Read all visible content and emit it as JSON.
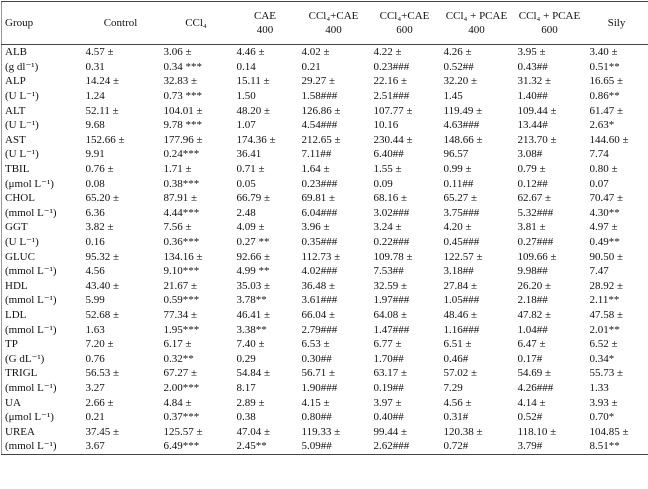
{
  "table": {
    "header": [
      [
        "Group"
      ],
      [
        "Control"
      ],
      [
        "CCl₄"
      ],
      [
        "CAE",
        "400"
      ],
      [
        "CCl₄+CAE",
        "400"
      ],
      [
        "CCl₄+CAE",
        "600"
      ],
      [
        "CCl₄ + PCAE",
        "400"
      ],
      [
        "CCl₄ + PCAE",
        "600"
      ],
      [
        "Sily"
      ]
    ],
    "rows": [
      [
        "ALB",
        "4.57 ±",
        "3.06 ±",
        "4.46 ±",
        "4.02 ±",
        "4.22 ±",
        "4.26 ±",
        "3.95 ±",
        "3.40 ±"
      ],
      [
        "(g dl⁻¹)",
        "0.31",
        "0.34 ***",
        "0.14",
        "0.21",
        "0.23###",
        "0.52##",
        "0.43##",
        "0.51**"
      ],
      [
        "ALP",
        "14.24 ±",
        "32.83 ±",
        "15.11 ±",
        "29.27 ±",
        "22.16 ±",
        "32.20 ±",
        "31.32 ±",
        "16.65 ±"
      ],
      [
        "(U L⁻¹)",
        "1.24",
        "0.73 ***",
        "1.50",
        "1.58###",
        "2.51###",
        "1.45",
        "1.40##",
        "0.86**"
      ],
      [
        "ALT",
        "52.11 ±",
        "104.01 ±",
        "48.20 ±",
        "126.86 ±",
        "107.77 ±",
        "119.49 ±",
        "109.44 ±",
        "61.47 ±"
      ],
      [
        "(U L⁻¹)",
        "9.68",
        "9.78 ***",
        "1.07",
        "4.54###",
        "10.16",
        "4.63###",
        "13.44#",
        "2.63*"
      ],
      [
        "AST",
        "152.66 ±",
        "177.96 ±",
        "174.36 ±",
        "212.65 ±",
        "230.44 ±",
        "148.66 ±",
        "213.70 ±",
        "144.60 ±"
      ],
      [
        "(U L⁻¹)",
        "9.91",
        "0.24***",
        "36.41",
        "7.11##",
        "6.40##",
        "96.57",
        "3.08#",
        "7.74"
      ],
      [
        "TBIL",
        "0.76 ±",
        "1.71 ±",
        "0.71 ±",
        "1.64 ±",
        "1.55 ±",
        "0.99 ±",
        "0.79 ±",
        "0.80 ±"
      ],
      [
        "(μmol L⁻¹)",
        "0.08",
        "0.38***",
        "0.05",
        "0.23###",
        "0.09",
        "0.11##",
        "0.12##",
        "0.07"
      ],
      [
        "CHOL",
        "65.20 ±",
        "87.91 ±",
        "66.79 ±",
        "69.81 ±",
        "68.16 ±",
        "65.27 ±",
        "62.67 ±",
        "70.47 ±"
      ],
      [
        "(mmol L⁻¹)",
        "6.36",
        "4.44***",
        "2.48",
        "6.04###",
        "3.02###",
        "3.75###",
        "5.32###",
        "4.30**"
      ],
      [
        "GGT",
        "3.82 ±",
        "7.56 ±",
        "4.09 ±",
        "3.96 ±",
        "3.24 ±",
        "4.20 ±",
        "3.81 ±",
        "4.97 ±"
      ],
      [
        "(U L⁻¹)",
        "0.16",
        "0.36***",
        "0.27 **",
        "0.35###",
        "0.22###",
        "0.45###",
        "0.27###",
        "0.49**"
      ],
      [
        "GLUC",
        "95.32 ±",
        "134.16 ±",
        "92.66 ±",
        "112.73 ±",
        "109.78 ±",
        "122.57 ±",
        "109.66 ±",
        "90.50 ±"
      ],
      [
        "(mmol L⁻¹)",
        "4.56",
        "9.10***",
        "4.99 **",
        "4.02###",
        "7.53##",
        "3.18##",
        "9.98##",
        "7.47"
      ],
      [
        "HDL",
        "43.40 ±",
        "21.67 ±",
        "35.03 ±",
        "36.48 ±",
        "32.59 ±",
        "27.84 ±",
        "26.20 ±",
        "28.92 ±"
      ],
      [
        "(mmol L⁻¹)",
        "5.99",
        "0.59***",
        "3.78**",
        "3.61###",
        "1.97###",
        "1.05###",
        "2.18##",
        "2.11**"
      ],
      [
        "LDL",
        "52.68 ±",
        "77.34 ±",
        "46.41 ±",
        "66.04 ±",
        "64.08 ±",
        "48.46 ±",
        "47.82 ±",
        "47.58 ±"
      ],
      [
        "(mmol L⁻¹)",
        "1.63",
        "1.95***",
        "3.38**",
        "2.79###",
        "1.47###",
        "1.16###",
        "1.04##",
        "2.01**"
      ],
      [
        "TP",
        "7.20 ±",
        "6.17 ±",
        "7.40 ±",
        "6.53 ±",
        "6.77 ±",
        "6.51 ±",
        "6.47 ±",
        "6.52 ±"
      ],
      [
        "(G dL⁻¹)",
        "0.76",
        "0.32**",
        "0.29",
        "0.30##",
        "1.70##",
        "0.46#",
        "0.17#",
        "0.34*"
      ],
      [
        "TRIGL",
        "56.53 ±",
        "67.27 ±",
        "54.84 ±",
        "56.71 ±",
        "63.17 ±",
        "57.02 ±",
        "54.69 ±",
        "55.73 ±"
      ],
      [
        "(mmol L⁻¹)",
        "3.27",
        "2.00***",
        "8.17",
        "1.90###",
        "0.19##",
        "7.29",
        "4.26###",
        "1.33"
      ],
      [
        "UA",
        "2.66 ±",
        "4.84 ±",
        "2.89 ±",
        "4.15 ±",
        "3.97 ±",
        "4.56 ±",
        "4.14 ±",
        "3.93 ±"
      ],
      [
        "(μmol L⁻¹)",
        "0.21",
        "0.37***",
        "0.38",
        "0.80##",
        "0.40##",
        "0.31#",
        "0.52#",
        "0.70*"
      ],
      [
        "UREA",
        "37.45 ±",
        "125.57 ±",
        "47.04 ±",
        "119.33 ±",
        "99.44 ±",
        "120.38 ±",
        "118.10 ±",
        "104.85 ±"
      ],
      [
        "(mmol L⁻¹)",
        "3.67",
        "6.49***",
        "2.45**",
        "5.09##",
        "2.62###",
        "0.72#",
        "3.79#",
        "8.51**"
      ]
    ]
  }
}
